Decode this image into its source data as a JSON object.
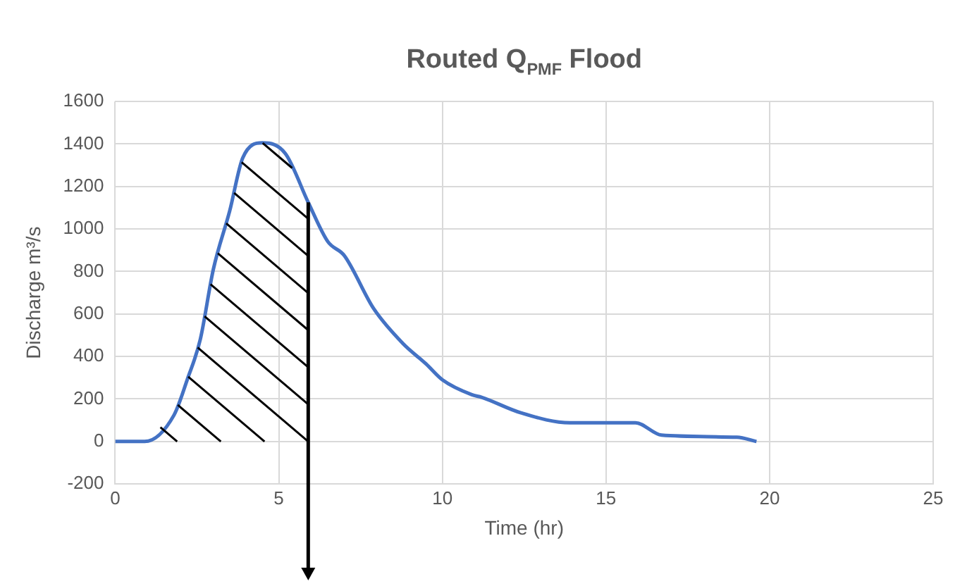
{
  "chart_data": {
    "type": "line",
    "title": "Routed Q$_{PMF}$ Flood",
    "xlabel": "Time (hr)",
    "ylabel": "Discharge m³/s",
    "series": [
      {
        "color": "#4472c4",
        "x": [
          0,
          0.9,
          1.8,
          2.2,
          2.6,
          3.0,
          3.5,
          3.9,
          4.5,
          5.2,
          5.9,
          6.5,
          7.0,
          7.9,
          8.8,
          9.5,
          10.0,
          10.9,
          11.2,
          12.4,
          13.9,
          15.9,
          16.7,
          19.0,
          19.6
        ],
        "values": [
          0,
          0,
          125,
          290,
          480,
          810,
          1085,
          1335,
          1405,
          1355,
          1125,
          940,
          875,
          625,
          460,
          365,
          290,
          220,
          208,
          135,
          88,
          88,
          30,
          20,
          0
        ]
      }
    ],
    "xlim": [
      0,
      25
    ],
    "xticks": [
      0,
      5,
      10,
      15,
      20,
      25
    ],
    "ylim": [
      -200,
      1600
    ],
    "yticks": [
      -200,
      0,
      200,
      400,
      600,
      800,
      1000,
      1200,
      1400,
      1600
    ],
    "grid": true,
    "legend": false,
    "marker": "none",
    "line_style": "solid",
    "ref_lines": [
      {
        "axis": "x",
        "value": 5.9,
        "color": "#000000"
      }
    ]
  }
}
